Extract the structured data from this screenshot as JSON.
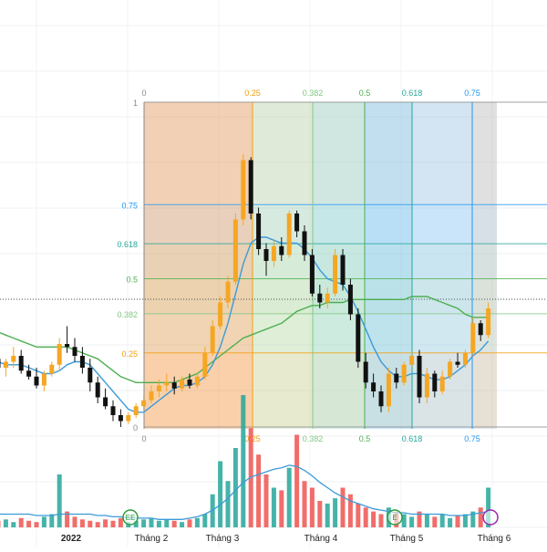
{
  "chart_data": {
    "type": "candlestick",
    "fib_time_zones": {
      "levels": [
        "0",
        "0.25",
        "0.382",
        "0.5",
        "0.618",
        "0.75"
      ],
      "level_values": [
        0,
        0.25,
        0.382,
        0.5,
        0.618,
        0.75
      ],
      "zone_colors": [
        "#f4a261",
        "#c9dfb8",
        "#9fd9c9",
        "#7fc6ec",
        "#a9d3f5",
        "#c8c8c8"
      ]
    },
    "fib_retracement": {
      "levels": [
        "1",
        "0.75",
        "0.618",
        "0.5",
        "0.382",
        "0.25",
        "0"
      ],
      "level_values": [
        1,
        0.75,
        0.618,
        0.5,
        0.382,
        0.25,
        0
      ],
      "level_colors": [
        "#888888",
        "#2196f3",
        "#26a69a",
        "#4caf50",
        "#81c784",
        "#f59e0b",
        "#888888"
      ]
    },
    "x_axis_labels": [
      "2022",
      "Tháng 2",
      "Tháng 3",
      "Tháng 4",
      "Tháng 5",
      "Tháng 6"
    ],
    "price_range": [
      0,
      1
    ],
    "candles": [
      {
        "o": 0.23,
        "h": 0.26,
        "l": 0.19,
        "c": 0.2
      },
      {
        "o": 0.2,
        "h": 0.23,
        "l": 0.17,
        "c": 0.22
      },
      {
        "o": 0.22,
        "h": 0.27,
        "l": 0.2,
        "c": 0.24
      },
      {
        "o": 0.24,
        "h": 0.26,
        "l": 0.18,
        "c": 0.19
      },
      {
        "o": 0.19,
        "h": 0.21,
        "l": 0.16,
        "c": 0.17
      },
      {
        "o": 0.17,
        "h": 0.2,
        "l": 0.13,
        "c": 0.14
      },
      {
        "o": 0.14,
        "h": 0.19,
        "l": 0.12,
        "c": 0.18
      },
      {
        "o": 0.18,
        "h": 0.22,
        "l": 0.17,
        "c": 0.21
      },
      {
        "o": 0.21,
        "h": 0.3,
        "l": 0.19,
        "c": 0.28
      },
      {
        "o": 0.28,
        "h": 0.34,
        "l": 0.25,
        "c": 0.27
      },
      {
        "o": 0.27,
        "h": 0.3,
        "l": 0.22,
        "c": 0.24
      },
      {
        "o": 0.24,
        "h": 0.27,
        "l": 0.18,
        "c": 0.2
      },
      {
        "o": 0.2,
        "h": 0.23,
        "l": 0.12,
        "c": 0.15
      },
      {
        "o": 0.15,
        "h": 0.17,
        "l": 0.08,
        "c": 0.1
      },
      {
        "o": 0.1,
        "h": 0.13,
        "l": 0.06,
        "c": 0.07
      },
      {
        "o": 0.07,
        "h": 0.09,
        "l": 0.02,
        "c": 0.04
      },
      {
        "o": 0.04,
        "h": 0.06,
        "l": 0.0,
        "c": 0.02
      },
      {
        "o": 0.02,
        "h": 0.05,
        "l": 0.01,
        "c": 0.04
      },
      {
        "o": 0.04,
        "h": 0.08,
        "l": 0.03,
        "c": 0.07
      },
      {
        "o": 0.07,
        "h": 0.11,
        "l": 0.05,
        "c": 0.09
      },
      {
        "o": 0.09,
        "h": 0.14,
        "l": 0.08,
        "c": 0.12
      },
      {
        "o": 0.12,
        "h": 0.16,
        "l": 0.1,
        "c": 0.14
      },
      {
        "o": 0.14,
        "h": 0.18,
        "l": 0.12,
        "c": 0.15
      },
      {
        "o": 0.15,
        "h": 0.17,
        "l": 0.11,
        "c": 0.13
      },
      {
        "o": 0.13,
        "h": 0.17,
        "l": 0.12,
        "c": 0.16
      },
      {
        "o": 0.16,
        "h": 0.18,
        "l": 0.13,
        "c": 0.14
      },
      {
        "o": 0.14,
        "h": 0.18,
        "l": 0.13,
        "c": 0.17
      },
      {
        "o": 0.17,
        "h": 0.27,
        "l": 0.16,
        "c": 0.25
      },
      {
        "o": 0.25,
        "h": 0.36,
        "l": 0.24,
        "c": 0.34
      },
      {
        "o": 0.34,
        "h": 0.44,
        "l": 0.33,
        "c": 0.42
      },
      {
        "o": 0.42,
        "h": 0.51,
        "l": 0.4,
        "c": 0.49
      },
      {
        "o": 0.49,
        "h": 0.72,
        "l": 0.48,
        "c": 0.7
      },
      {
        "o": 0.7,
        "h": 0.92,
        "l": 0.68,
        "c": 0.9
      },
      {
        "o": 0.9,
        "h": 0.91,
        "l": 0.7,
        "c": 0.72
      },
      {
        "o": 0.72,
        "h": 0.74,
        "l": 0.58,
        "c": 0.6
      },
      {
        "o": 0.6,
        "h": 0.62,
        "l": 0.51,
        "c": 0.56
      },
      {
        "o": 0.56,
        "h": 0.63,
        "l": 0.54,
        "c": 0.61
      },
      {
        "o": 0.61,
        "h": 0.64,
        "l": 0.56,
        "c": 0.58
      },
      {
        "o": 0.58,
        "h": 0.73,
        "l": 0.57,
        "c": 0.72
      },
      {
        "o": 0.72,
        "h": 0.73,
        "l": 0.64,
        "c": 0.66
      },
      {
        "o": 0.66,
        "h": 0.68,
        "l": 0.56,
        "c": 0.58
      },
      {
        "o": 0.58,
        "h": 0.6,
        "l": 0.44,
        "c": 0.45
      },
      {
        "o": 0.45,
        "h": 0.48,
        "l": 0.4,
        "c": 0.42
      },
      {
        "o": 0.42,
        "h": 0.47,
        "l": 0.4,
        "c": 0.45
      },
      {
        "o": 0.45,
        "h": 0.6,
        "l": 0.44,
        "c": 0.58
      },
      {
        "o": 0.58,
        "h": 0.6,
        "l": 0.46,
        "c": 0.48
      },
      {
        "o": 0.48,
        "h": 0.5,
        "l": 0.36,
        "c": 0.38
      },
      {
        "o": 0.38,
        "h": 0.4,
        "l": 0.2,
        "c": 0.22
      },
      {
        "o": 0.22,
        "h": 0.25,
        "l": 0.13,
        "c": 0.15
      },
      {
        "o": 0.15,
        "h": 0.18,
        "l": 0.1,
        "c": 0.12
      },
      {
        "o": 0.12,
        "h": 0.14,
        "l": 0.05,
        "c": 0.07
      },
      {
        "o": 0.07,
        "h": 0.2,
        "l": 0.05,
        "c": 0.18
      },
      {
        "o": 0.18,
        "h": 0.2,
        "l": 0.13,
        "c": 0.15
      },
      {
        "o": 0.15,
        "h": 0.22,
        "l": 0.14,
        "c": 0.21
      },
      {
        "o": 0.21,
        "h": 0.26,
        "l": 0.2,
        "c": 0.24
      },
      {
        "o": 0.24,
        "h": 0.26,
        "l": 0.08,
        "c": 0.1
      },
      {
        "o": 0.1,
        "h": 0.2,
        "l": 0.08,
        "c": 0.18
      },
      {
        "o": 0.18,
        "h": 0.19,
        "l": 0.1,
        "c": 0.12
      },
      {
        "o": 0.12,
        "h": 0.19,
        "l": 0.11,
        "c": 0.17
      },
      {
        "o": 0.17,
        "h": 0.23,
        "l": 0.16,
        "c": 0.22
      },
      {
        "o": 0.22,
        "h": 0.25,
        "l": 0.2,
        "c": 0.21
      },
      {
        "o": 0.21,
        "h": 0.26,
        "l": 0.2,
        "c": 0.25
      },
      {
        "o": 0.25,
        "h": 0.37,
        "l": 0.24,
        "c": 0.35
      },
      {
        "o": 0.35,
        "h": 0.36,
        "l": 0.29,
        "c": 0.31
      },
      {
        "o": 0.31,
        "h": 0.42,
        "l": 0.3,
        "c": 0.4
      }
    ],
    "ma_fast": [
      0.22,
      0.21,
      0.21,
      0.21,
      0.2,
      0.19,
      0.18,
      0.18,
      0.19,
      0.21,
      0.22,
      0.22,
      0.21,
      0.18,
      0.15,
      0.12,
      0.09,
      0.06,
      0.05,
      0.05,
      0.07,
      0.09,
      0.11,
      0.13,
      0.14,
      0.14,
      0.15,
      0.17,
      0.21,
      0.27,
      0.35,
      0.45,
      0.55,
      0.62,
      0.64,
      0.64,
      0.63,
      0.62,
      0.62,
      0.62,
      0.6,
      0.57,
      0.53,
      0.5,
      0.49,
      0.48,
      0.44,
      0.39,
      0.33,
      0.27,
      0.22,
      0.19,
      0.17,
      0.17,
      0.18,
      0.18,
      0.17,
      0.16,
      0.16,
      0.17,
      0.19,
      0.21,
      0.24,
      0.26,
      0.29
    ],
    "ma_slow": [
      0.32,
      0.31,
      0.3,
      0.29,
      0.28,
      0.27,
      0.27,
      0.27,
      0.27,
      0.27,
      0.26,
      0.25,
      0.24,
      0.23,
      0.21,
      0.19,
      0.17,
      0.16,
      0.15,
      0.15,
      0.15,
      0.15,
      0.15,
      0.15,
      0.16,
      0.17,
      0.18,
      0.2,
      0.22,
      0.24,
      0.26,
      0.28,
      0.3,
      0.31,
      0.32,
      0.33,
      0.34,
      0.35,
      0.37,
      0.39,
      0.4,
      0.41,
      0.41,
      0.42,
      0.42,
      0.42,
      0.43,
      0.43,
      0.43,
      0.43,
      0.43,
      0.43,
      0.43,
      0.43,
      0.44,
      0.44,
      0.44,
      0.43,
      0.42,
      0.41,
      0.4,
      0.38,
      0.37,
      0.37,
      0.37
    ],
    "volume": [
      0.05,
      0.06,
      0.04,
      0.07,
      0.05,
      0.04,
      0.08,
      0.1,
      0.4,
      0.12,
      0.08,
      0.06,
      0.05,
      0.04,
      0.06,
      0.05,
      0.07,
      0.04,
      0.05,
      0.06,
      0.07,
      0.05,
      0.06,
      0.05,
      0.04,
      0.06,
      0.07,
      0.1,
      0.25,
      0.5,
      0.35,
      0.6,
      1.0,
      0.75,
      0.55,
      0.4,
      0.3,
      0.28,
      0.45,
      0.7,
      0.35,
      0.3,
      0.2,
      0.18,
      0.22,
      0.3,
      0.25,
      0.18,
      0.15,
      0.12,
      0.1,
      0.15,
      0.12,
      0.1,
      0.08,
      0.12,
      0.1,
      0.08,
      0.1,
      0.07,
      0.09,
      0.1,
      0.12,
      0.15,
      0.3
    ],
    "volume_ma": [
      0.1,
      0.1,
      0.1,
      0.1,
      0.1,
      0.09,
      0.09,
      0.09,
      0.1,
      0.1,
      0.1,
      0.1,
      0.1,
      0.09,
      0.09,
      0.08,
      0.08,
      0.07,
      0.07,
      0.07,
      0.07,
      0.06,
      0.06,
      0.06,
      0.06,
      0.07,
      0.08,
      0.1,
      0.13,
      0.17,
      0.22,
      0.28,
      0.34,
      0.38,
      0.4,
      0.42,
      0.44,
      0.45,
      0.47,
      0.46,
      0.43,
      0.39,
      0.34,
      0.3,
      0.26,
      0.23,
      0.2,
      0.18,
      0.16,
      0.14,
      0.13,
      0.12,
      0.11,
      0.11,
      0.1,
      0.1,
      0.1,
      0.1,
      0.1,
      0.09,
      0.09,
      0.09,
      0.1,
      0.11,
      0.12
    ],
    "colors": {
      "up": "#f5a623",
      "down": "#111111",
      "ma_fast": "#3b9ad9",
      "ma_slow": "#4caf50",
      "vol_up": "#26a69a",
      "vol_down": "#ef5350"
    },
    "markers": [
      {
        "label": "EE",
        "index": 0
      },
      {
        "label": "E",
        "index": 0
      },
      {
        "label": "",
        "index": 0
      }
    ]
  }
}
